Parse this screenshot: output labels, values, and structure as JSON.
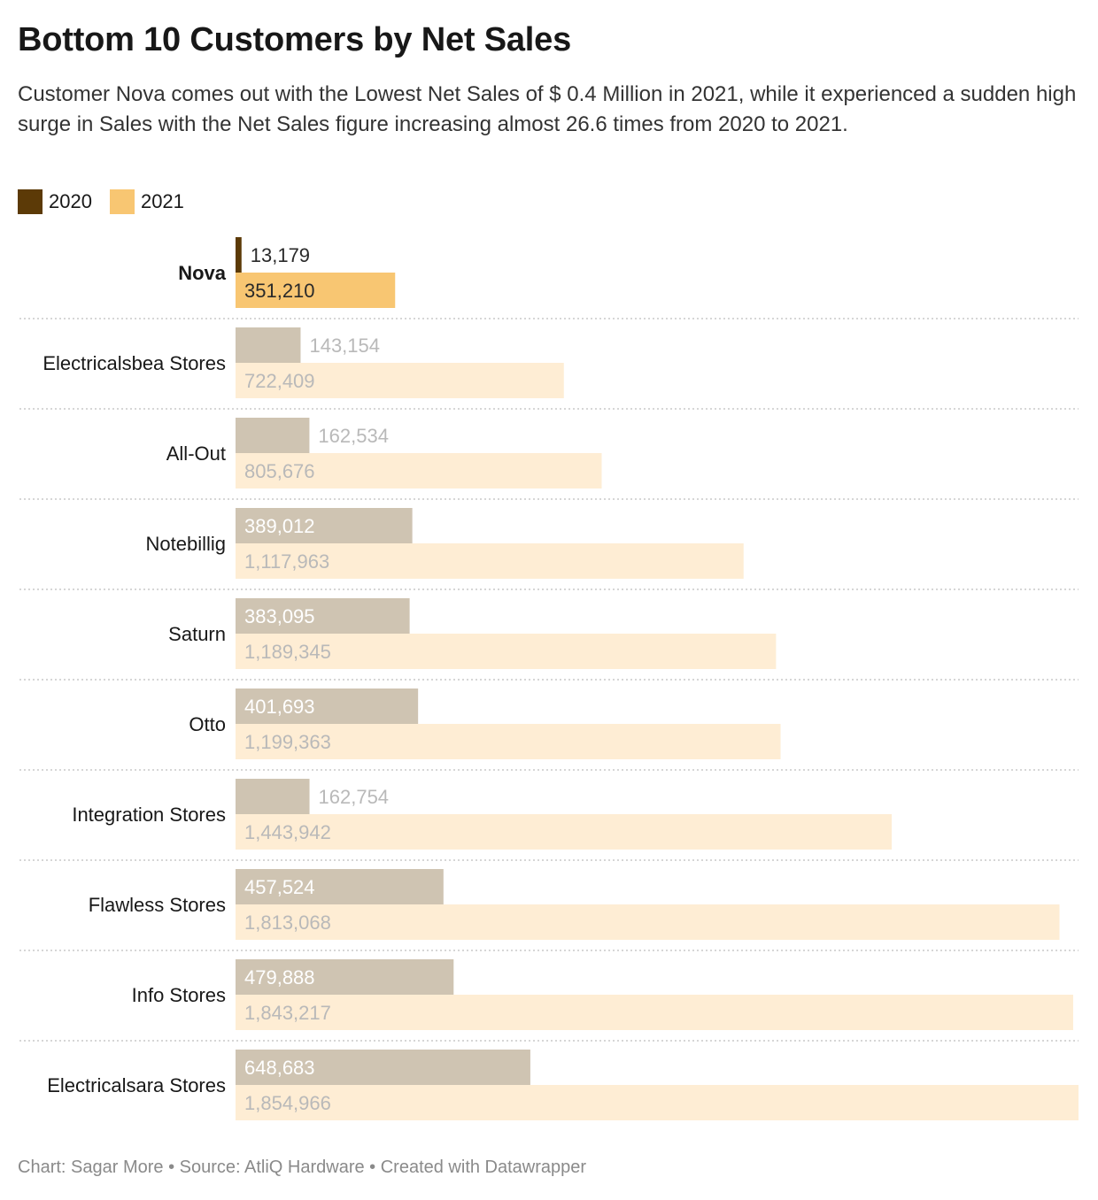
{
  "title": "Bottom 10 Customers by Net Sales",
  "subtitle": "Customer Nova comes out with the Lowest Net Sales of $ 0.4 Million in 2021, while it experienced a sudden high surge in Sales with the Net Sales figure increasing almost 26.6 times from 2020 to 2021.",
  "legend": [
    {
      "label": "2020",
      "color": "#5c3a07"
    },
    {
      "label": "2021",
      "color": "#f8c672"
    }
  ],
  "footer": "Chart: Sagar More • Source: AtliQ Hardware • Created with Datawrapper",
  "colors": {
    "highlight_2020": "#5c3a07",
    "highlight_2021": "#f8c672",
    "muted_2020": "#cfc4b2",
    "muted_2021": "#feedd4",
    "label_dark": "#2a2a2a",
    "label_white": "#ffffff",
    "label_muted": "#b9b9b9",
    "separator": "#c8c8c8"
  },
  "chart_data": {
    "type": "bar",
    "orientation": "horizontal",
    "highlighted_category": "Nova",
    "categories": [
      "Nova",
      "Electricalsbea Stores",
      "All-Out",
      "Notebillig",
      "Saturn",
      "Otto",
      "Integration Stores",
      "Flawless Stores",
      "Info Stores",
      "Electricalsara Stores"
    ],
    "series": [
      {
        "name": "2020",
        "values": [
          13179,
          143154,
          162534,
          389012,
          383095,
          401693,
          162754,
          457524,
          479888,
          648683
        ],
        "labels": [
          "13,179",
          "143,154",
          "162,534",
          "389,012",
          "383,095",
          "401,693",
          "162,754",
          "457,524",
          "479,888",
          "648,683"
        ]
      },
      {
        "name": "2021",
        "values": [
          351210,
          722409,
          805676,
          1117963,
          1189345,
          1199363,
          1443942,
          1813068,
          1843217,
          1854966
        ],
        "labels": [
          "351,210",
          "722,409",
          "805,676",
          "1,117,963",
          "1,189,345",
          "1,199,363",
          "1,443,942",
          "1,813,068",
          "1,843,217",
          "1,854,966"
        ]
      }
    ],
    "xlim": [
      0,
      1854966
    ],
    "grid": false,
    "legend_position": "top-left"
  }
}
